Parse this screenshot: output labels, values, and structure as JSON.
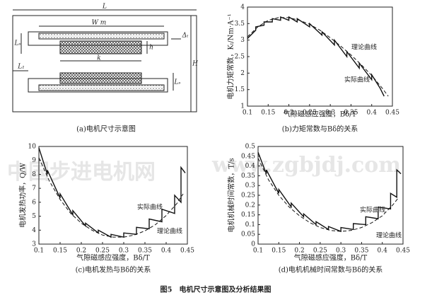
{
  "watermarks": [
    "中国步进电机网",
    "www.zgbjdj.com"
  ],
  "figure_caption": "图5　电机尺寸示意图及分析结果图",
  "diagram": {
    "caption": "(a)电机尺寸示意图",
    "labels": [
      "L",
      "W m",
      "Lₛ",
      "h",
      "Δₜ",
      "k",
      "L₁",
      "H",
      "Lₛ"
    ]
  },
  "chart_data": [
    {
      "type": "line",
      "caption": "(b)力矩常数与Bδ的关系",
      "xlabel": "气隙磁感应强度，Bδ/T",
      "ylabel": "电机力矩常数，Kₜ/Nm·A⁻¹",
      "xlim": [
        0.1,
        0.45
      ],
      "xticks": [
        0.1,
        0.15,
        0.2,
        0.25,
        0.3,
        0.35,
        0.4,
        0.45
      ],
      "ylim": [
        1,
        4
      ],
      "yticks": [
        1,
        1.5,
        2,
        2.5,
        3,
        3.5,
        4
      ],
      "series": [
        {
          "name": "实际曲线",
          "color": "#111",
          "style": "solid",
          "x": [
            0.1,
            0.12,
            0.12,
            0.14,
            0.14,
            0.16,
            0.16,
            0.18,
            0.18,
            0.2,
            0.2,
            0.22,
            0.22,
            0.25,
            0.25,
            0.28,
            0.28,
            0.31,
            0.31,
            0.34,
            0.34,
            0.37,
            0.37,
            0.4,
            0.4,
            0.42,
            0.43
          ],
          "values": [
            3.05,
            3.3,
            3.4,
            3.45,
            3.55,
            3.55,
            3.65,
            3.6,
            3.7,
            3.6,
            3.7,
            3.55,
            3.65,
            3.4,
            3.5,
            3.15,
            3.25,
            2.85,
            3.0,
            2.5,
            2.65,
            2.15,
            2.3,
            1.8,
            1.95,
            1.55,
            1.3
          ]
        },
        {
          "name": "理论曲线",
          "color": "#111",
          "style": "dashed",
          "x": [
            0.1,
            0.125,
            0.15,
            0.175,
            0.2,
            0.225,
            0.25,
            0.275,
            0.3,
            0.325,
            0.35,
            0.375,
            0.4,
            0.425,
            0.44
          ],
          "values": [
            3.1,
            3.4,
            3.6,
            3.68,
            3.68,
            3.6,
            3.48,
            3.3,
            3.07,
            2.82,
            2.55,
            2.25,
            1.93,
            1.55,
            1.3
          ]
        }
      ]
    },
    {
      "type": "line",
      "caption": "(c)电机发热与Bδ的关系",
      "xlabel": "气隙磁感应强度，Bδ/T",
      "ylabel": "电机发热功率，Q/W",
      "xlim": [
        0.1,
        0.45
      ],
      "xticks": [
        0.1,
        0.15,
        0.2,
        0.25,
        0.3,
        0.35,
        0.4,
        0.45
      ],
      "ylim": [
        3,
        10
      ],
      "yticks": [
        3,
        4,
        5,
        6,
        7,
        8,
        9,
        10
      ],
      "series": [
        {
          "name": "实际曲线",
          "color": "#111",
          "style": "solid",
          "x": [
            0.1,
            0.12,
            0.12,
            0.15,
            0.15,
            0.18,
            0.18,
            0.21,
            0.21,
            0.24,
            0.24,
            0.27,
            0.27,
            0.3,
            0.3,
            0.33,
            0.33,
            0.36,
            0.36,
            0.39,
            0.39,
            0.42,
            0.42,
            0.435,
            0.435,
            0.445
          ],
          "values": [
            9.9,
            8.0,
            8.3,
            6.3,
            6.6,
            5.1,
            5.4,
            4.3,
            4.5,
            3.8,
            4.0,
            3.5,
            3.7,
            3.5,
            3.8,
            3.7,
            4.2,
            4.1,
            4.8,
            4.6,
            5.5,
            5.2,
            6.5,
            6.0,
            8.5,
            8.1
          ]
        },
        {
          "name": "理论曲线",
          "color": "#111",
          "style": "dashed",
          "x": [
            0.1,
            0.125,
            0.15,
            0.175,
            0.2,
            0.225,
            0.25,
            0.275,
            0.3,
            0.325,
            0.35,
            0.375,
            0.4,
            0.425,
            0.44
          ],
          "values": [
            9.2,
            7.5,
            6.2,
            5.2,
            4.5,
            4.0,
            3.65,
            3.5,
            3.5,
            3.65,
            3.95,
            4.4,
            5.05,
            5.9,
            6.6
          ]
        }
      ]
    },
    {
      "type": "line",
      "caption": "(d)电机机械时间常数与Bδ的关系",
      "xlabel": "气隙磁感应强度，Bδ/T",
      "ylabel": "电机机械时间常数，T/s",
      "xlim": [
        0.1,
        0.45
      ],
      "xticks": [
        0.1,
        0.15,
        0.2,
        0.25,
        0.3,
        0.35,
        0.4,
        0.45
      ],
      "ylim": [
        0,
        0.5
      ],
      "yticks": [
        0,
        0.05,
        0.1,
        0.15,
        0.2,
        0.25,
        0.3,
        0.35,
        0.4,
        0.45,
        0.5
      ],
      "series": [
        {
          "name": "实际曲线",
          "color": "#111",
          "style": "solid",
          "x": [
            0.1,
            0.12,
            0.12,
            0.15,
            0.15,
            0.18,
            0.18,
            0.21,
            0.21,
            0.24,
            0.24,
            0.27,
            0.27,
            0.3,
            0.3,
            0.33,
            0.33,
            0.36,
            0.36,
            0.39,
            0.39,
            0.42,
            0.42,
            0.435,
            0.435,
            0.445
          ],
          "values": [
            0.47,
            0.36,
            0.38,
            0.26,
            0.28,
            0.19,
            0.21,
            0.14,
            0.155,
            0.1,
            0.115,
            0.075,
            0.09,
            0.065,
            0.085,
            0.075,
            0.105,
            0.1,
            0.14,
            0.13,
            0.19,
            0.18,
            0.26,
            0.24,
            0.38,
            0.36
          ]
        },
        {
          "name": "理论曲线",
          "color": "#111",
          "style": "dashed",
          "x": [
            0.1,
            0.125,
            0.15,
            0.175,
            0.2,
            0.225,
            0.25,
            0.275,
            0.3,
            0.325,
            0.35,
            0.375,
            0.4,
            0.425,
            0.44
          ],
          "values": [
            0.44,
            0.33,
            0.25,
            0.19,
            0.145,
            0.11,
            0.085,
            0.07,
            0.065,
            0.07,
            0.085,
            0.11,
            0.145,
            0.2,
            0.24
          ]
        }
      ]
    }
  ]
}
